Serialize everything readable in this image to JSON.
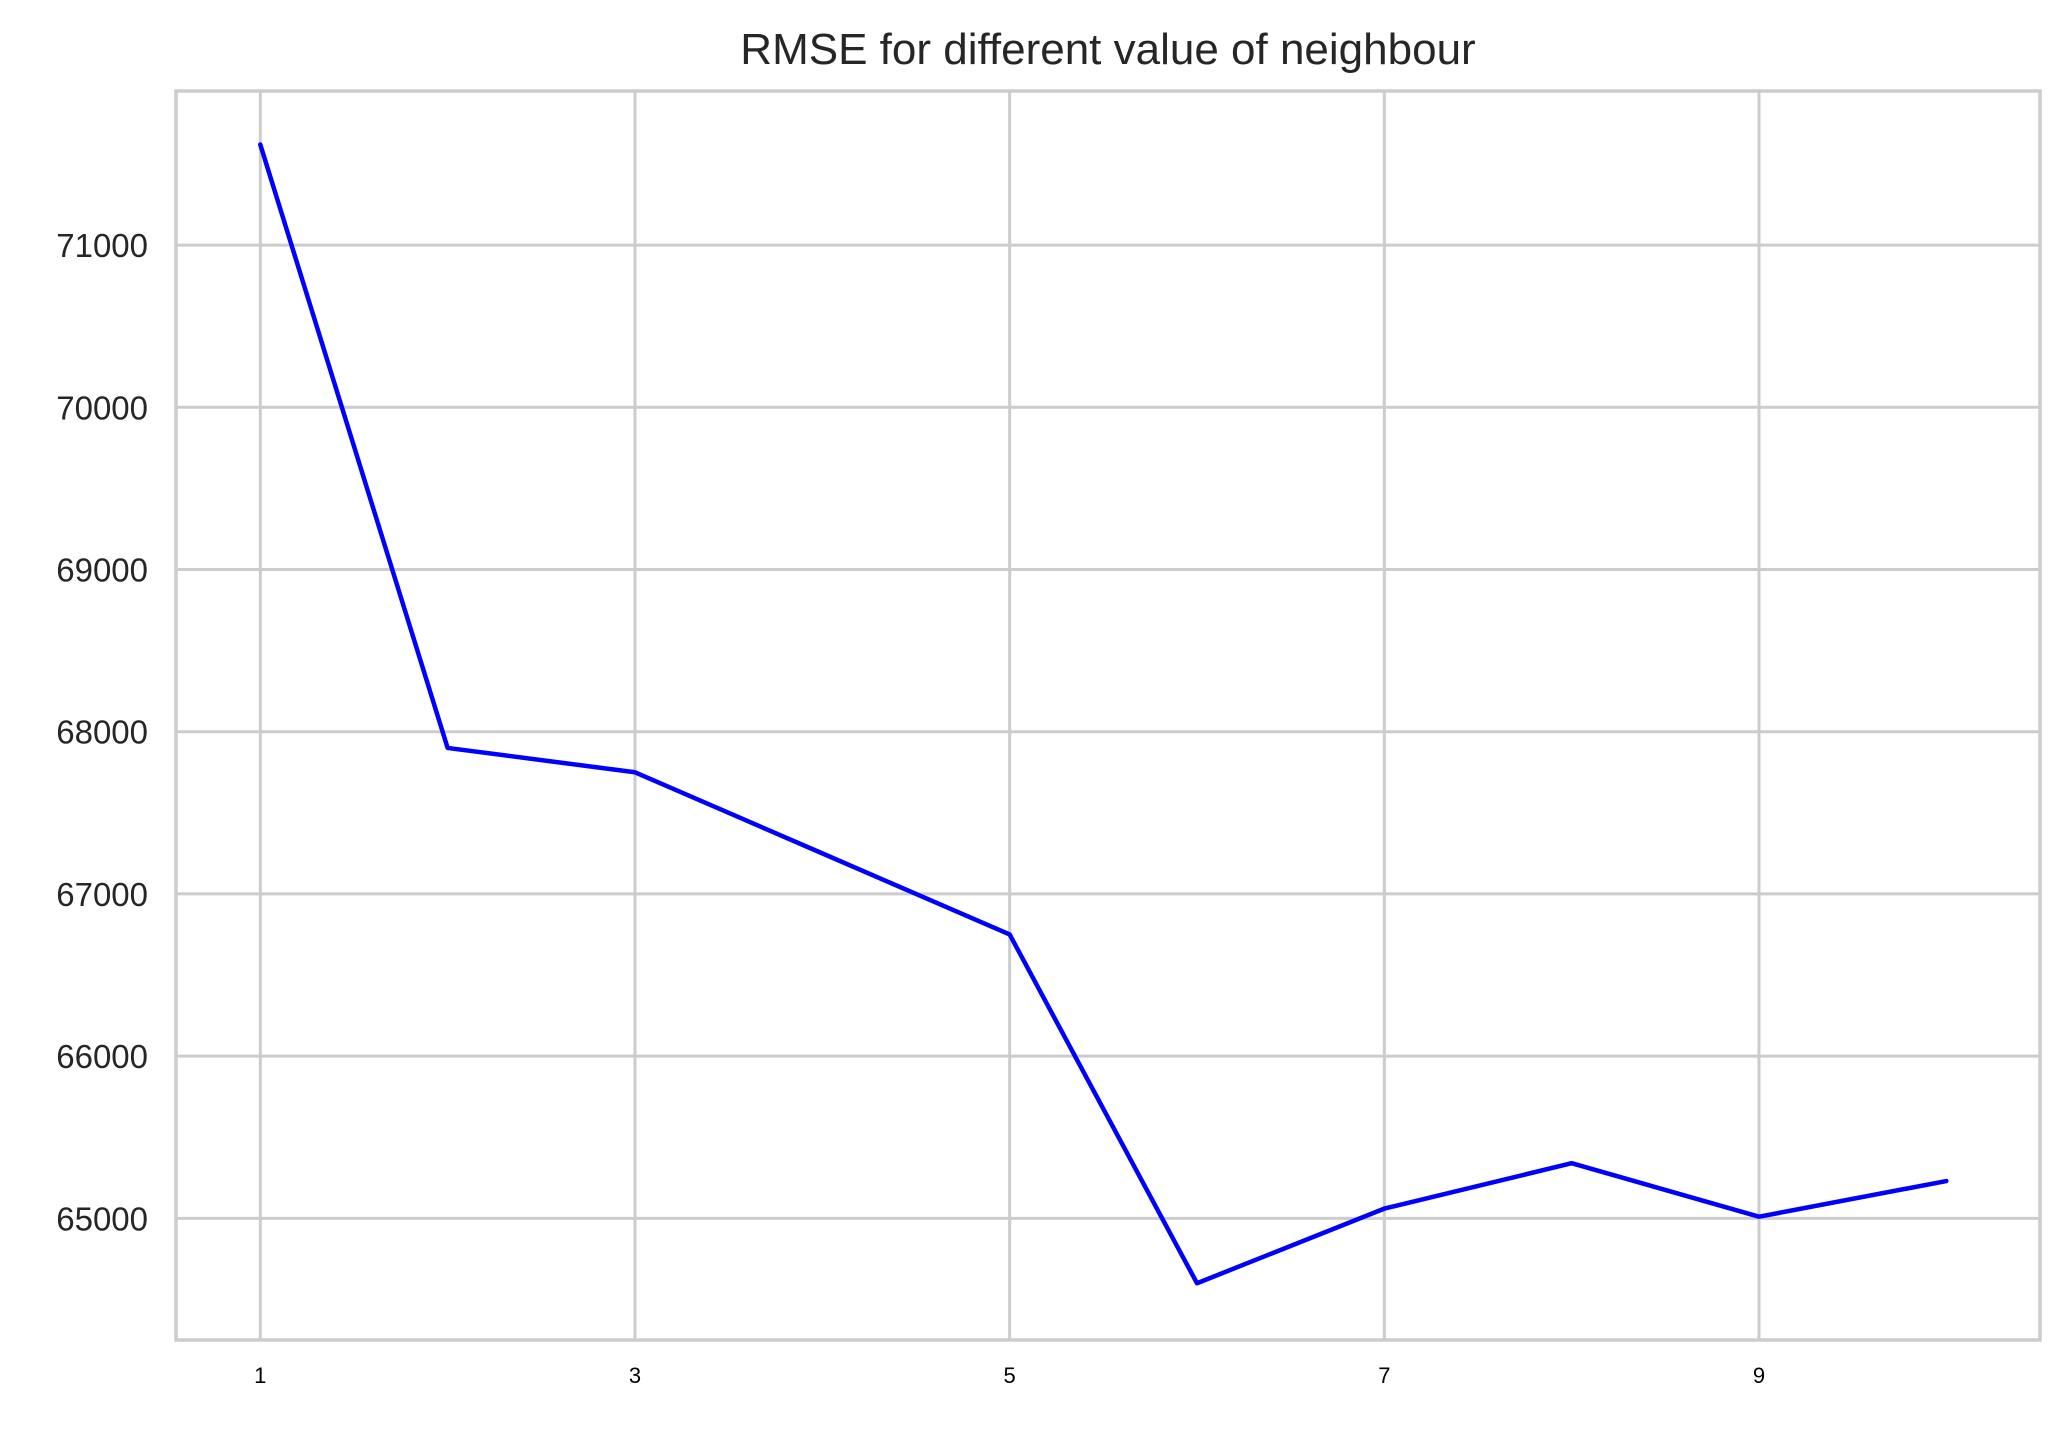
{
  "chart_data": {
    "type": "line",
    "title": "RMSE for different value of neighbour",
    "xlabel": "",
    "ylabel": "",
    "x": [
      1,
      2,
      3,
      4,
      5,
      6,
      7,
      8,
      9,
      10
    ],
    "xticks": [
      "1",
      "3",
      "5",
      "7",
      "9"
    ],
    "xtick_values": [
      1,
      3,
      5,
      7,
      9
    ],
    "xlim": [
      0.55,
      10.5
    ],
    "yticks": [
      "65000",
      "66000",
      "67000",
      "68000",
      "69000",
      "70000",
      "71000"
    ],
    "ytick_values": [
      65000,
      66000,
      67000,
      68000,
      69000,
      70000,
      71000
    ],
    "ylim": [
      64250,
      71950
    ],
    "series": [
      {
        "values": [
          71620,
          67900,
          67750,
          67250,
          66750,
          64600,
          65060,
          65340,
          65010,
          65230
        ],
        "color": "#0000ff"
      }
    ],
    "grid": true,
    "legend": "none"
  }
}
